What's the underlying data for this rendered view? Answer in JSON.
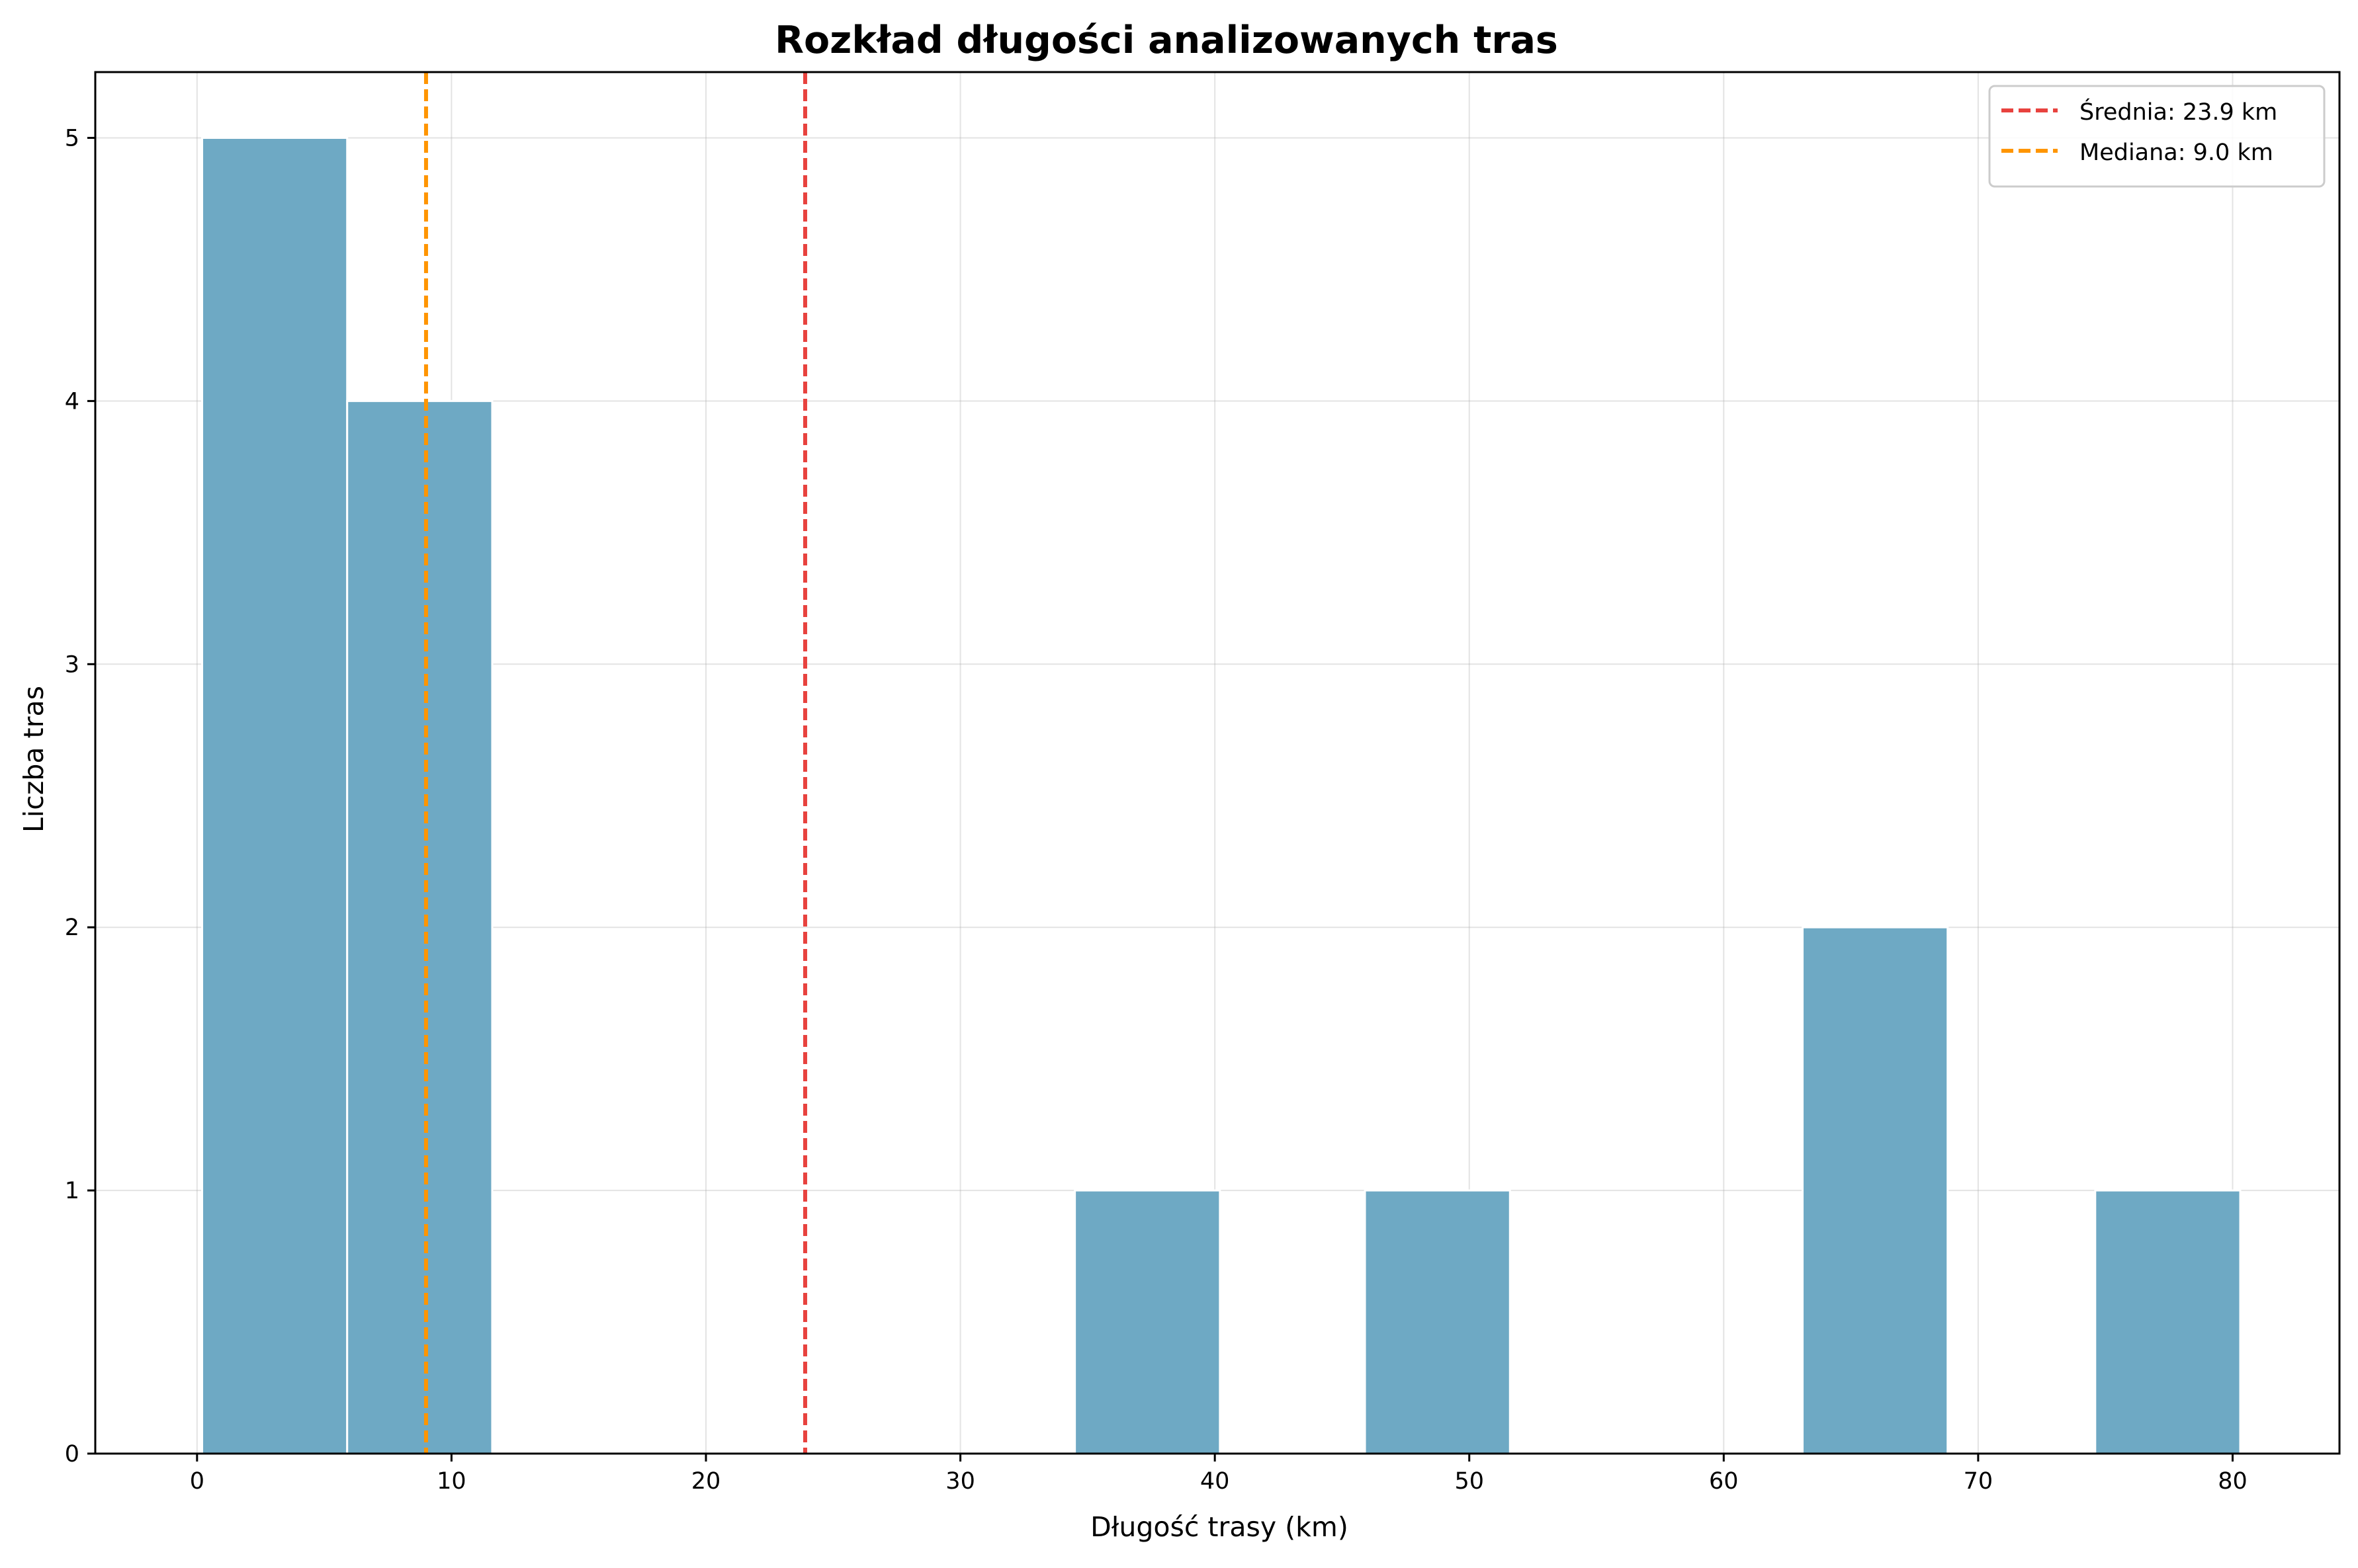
{
  "chart_data": {
    "type": "bar",
    "title": "Rozkład długości analizowanych tras",
    "xlabel": "Długość trasy (km)",
    "ylabel": "Liczba tras",
    "xlim": [
      -4.0,
      84.2
    ],
    "ylim": [
      0,
      5.25
    ],
    "x_ticks": [
      0,
      10,
      20,
      30,
      40,
      50,
      60,
      70,
      80
    ],
    "y_ticks": [
      0,
      1,
      2,
      3,
      4,
      5
    ],
    "grid": true,
    "bins": [
      {
        "start": 0.2,
        "end": 5.9,
        "count": 5
      },
      {
        "start": 5.9,
        "end": 11.6,
        "count": 4
      },
      {
        "start": 34.5,
        "end": 40.2,
        "count": 1
      },
      {
        "start": 45.9,
        "end": 51.6,
        "count": 1
      },
      {
        "start": 63.1,
        "end": 68.8,
        "count": 2
      },
      {
        "start": 74.6,
        "end": 80.3,
        "count": 1
      }
    ],
    "reference_lines": [
      {
        "label": "Średnia: 23.9 km",
        "value": 23.9,
        "color": "#e8423e"
      },
      {
        "label": "Mediana: 9.0 km",
        "value": 9.0,
        "color": "#ff9500"
      }
    ],
    "legend_position": "top-right",
    "bar_color": "#6ea9c4"
  }
}
